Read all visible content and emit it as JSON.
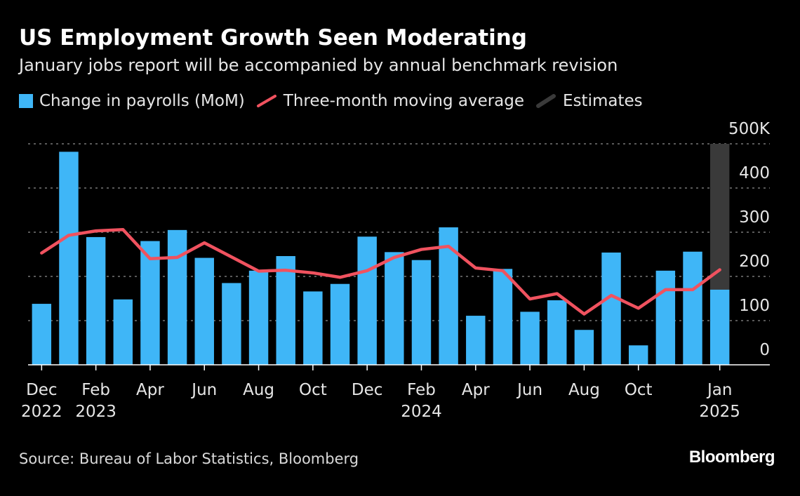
{
  "title": "US Employment Growth Seen Moderating",
  "subtitle": "January jobs report will be accompanied by annual benchmark revision",
  "legend": {
    "bars": "Change in payrolls (MoM)",
    "line": "Three-month moving average",
    "estimates": "Estimates"
  },
  "colors": {
    "bars": "#3fb6f7",
    "line": "#f0525f",
    "estimates": "#3a3a3a",
    "grid": "#777777"
  },
  "source": "Source: Bureau of Labor Statistics, Bloomberg",
  "brand": "Bloomberg",
  "chart_data": {
    "type": "bar",
    "title": "US Employment Growth Seen Moderating",
    "ylabel": "",
    "xlabel": "",
    "ylim": [
      0,
      500
    ],
    "y_ticks": [
      "500K",
      "400",
      "300",
      "200",
      "100",
      "0"
    ],
    "y_tick_values": [
      500,
      400,
      300,
      200,
      100,
      0
    ],
    "grid": true,
    "legend_position": "top-left",
    "categories": [
      "Dec 2022",
      "Jan 2023",
      "Feb 2023",
      "Mar 2023",
      "Apr 2023",
      "May 2023",
      "Jun 2023",
      "Jul 2023",
      "Aug 2023",
      "Sep 2023",
      "Oct 2023",
      "Nov 2023",
      "Dec 2023",
      "Jan 2024",
      "Feb 2024",
      "Mar 2024",
      "Apr 2024",
      "May 2024",
      "Jun 2024",
      "Jul 2024",
      "Aug 2024",
      "Sep 2024",
      "Oct 2024",
      "Nov 2024",
      "Dec 2024",
      "Jan 2025"
    ],
    "x_tick_labels": [
      {
        "index": 0,
        "month": "Dec",
        "year": "2022"
      },
      {
        "index": 2,
        "month": "Feb",
        "year": "2023"
      },
      {
        "index": 4,
        "month": "Apr",
        "year": ""
      },
      {
        "index": 6,
        "month": "Jun",
        "year": ""
      },
      {
        "index": 8,
        "month": "Aug",
        "year": ""
      },
      {
        "index": 10,
        "month": "Oct",
        "year": ""
      },
      {
        "index": 12,
        "month": "Dec",
        "year": ""
      },
      {
        "index": 14,
        "month": "Feb",
        "year": "2024"
      },
      {
        "index": 16,
        "month": "Apr",
        "year": ""
      },
      {
        "index": 18,
        "month": "Jun",
        "year": ""
      },
      {
        "index": 20,
        "month": "Aug",
        "year": ""
      },
      {
        "index": 22,
        "month": "Oct",
        "year": ""
      },
      {
        "index": 25,
        "month": "Jan",
        "year": "2025"
      }
    ],
    "series": [
      {
        "name": "Change in payrolls (MoM)",
        "type": "bar",
        "values": [
          138,
          482,
          289,
          148,
          280,
          305,
          242,
          185,
          213,
          246,
          166,
          183,
          290,
          255,
          237,
          311,
          111,
          217,
          120,
          146,
          79,
          254,
          44,
          213,
          256,
          170
        ]
      },
      {
        "name": "Three-month moving average",
        "type": "line",
        "values": [
          253,
          293,
          303,
          306,
          240,
          243,
          276,
          244,
          212,
          214,
          208,
          198,
          213,
          243,
          261,
          268,
          219,
          213,
          149,
          161,
          115,
          157,
          128,
          170,
          170,
          215
        ]
      }
    ],
    "estimates": {
      "name": "Estimates",
      "start_index": 25,
      "end_index": 25,
      "ylim": [
        0,
        500
      ]
    }
  }
}
